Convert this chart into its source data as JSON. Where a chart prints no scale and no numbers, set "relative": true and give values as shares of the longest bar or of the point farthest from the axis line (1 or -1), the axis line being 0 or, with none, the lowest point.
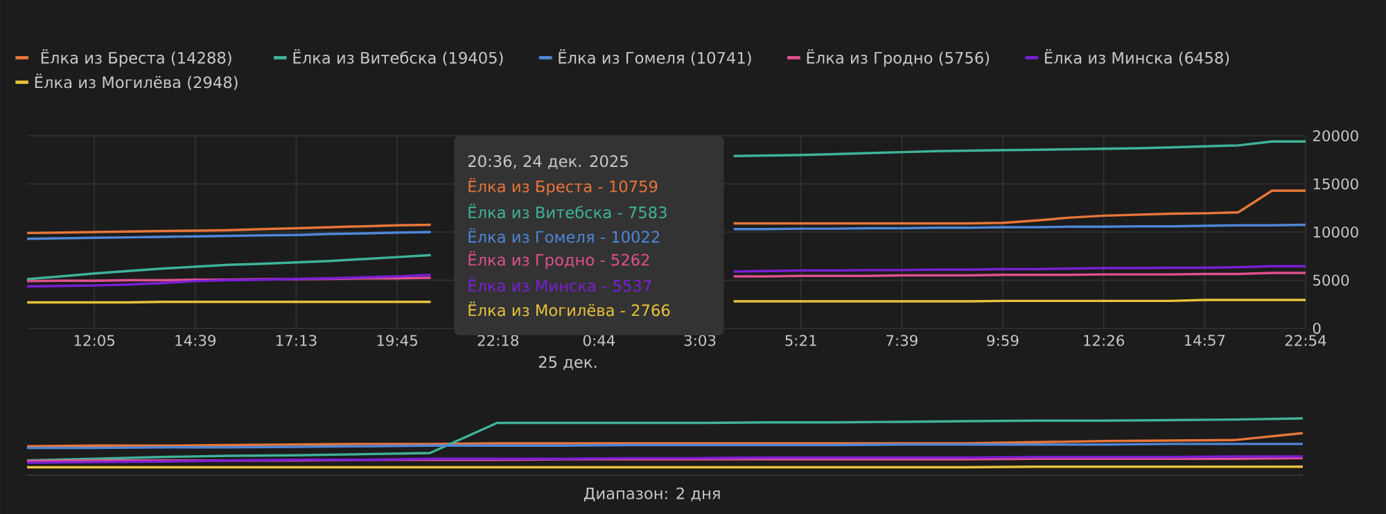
{
  "chart_data": [
    {
      "type": "line",
      "categories": [
        null,
        null,
        "12:05",
        null,
        null,
        "14:39",
        null,
        null,
        "17:13",
        null,
        null,
        "19:45",
        null,
        null,
        "22:18",
        null,
        null,
        "0:44",
        null,
        null,
        "3:03",
        null,
        null,
        "5:21",
        null,
        null,
        "7:39",
        null,
        null,
        "9:59",
        null,
        null,
        "12:26",
        null,
        null,
        "14:57",
        null,
        null,
        "22:54"
      ],
      "series": [
        {
          "name": "Ёлка из Бреста (14288)",
          "color": "#e8763a",
          "values": [
            9900,
            9950,
            10000,
            10050,
            10100,
            10150,
            10200,
            10300,
            10400,
            10500,
            10600,
            10700,
            10750,
            null,
            null,
            null,
            null,
            null,
            null,
            null,
            null,
            10900,
            10900,
            10900,
            10900,
            10900,
            10900,
            10900,
            10900,
            10950,
            11200,
            11500,
            11700,
            11800,
            11900,
            11950,
            12050,
            14300,
            14300
          ]
        },
        {
          "name": "Ёлка из Витебска (19405)",
          "color": "#3fb39a",
          "values": [
            5100,
            5400,
            5700,
            5950,
            6200,
            6400,
            6600,
            6700,
            6850,
            7000,
            7200,
            7400,
            7600,
            null,
            null,
            null,
            null,
            null,
            null,
            null,
            null,
            17900,
            17950,
            18000,
            18100,
            18200,
            18300,
            18400,
            18450,
            18500,
            18550,
            18600,
            18650,
            18700,
            18800,
            18900,
            19000,
            19400,
            19400
          ]
        },
        {
          "name": "Ёлка из Гомеля (10741)",
          "color": "#4f86d8",
          "values": [
            9300,
            9350,
            9400,
            9450,
            9500,
            9550,
            9600,
            9650,
            9700,
            9800,
            9850,
            9950,
            10000,
            null,
            null,
            null,
            null,
            null,
            null,
            null,
            null,
            10300,
            10300,
            10350,
            10350,
            10400,
            10400,
            10450,
            10450,
            10500,
            10500,
            10550,
            10550,
            10600,
            10600,
            10650,
            10700,
            10700,
            10750
          ]
        },
        {
          "name": "Ёлка из Гродно (5756)",
          "color": "#e0508f",
          "values": [
            4900,
            4950,
            4950,
            5000,
            5000,
            5050,
            5050,
            5100,
            5100,
            5150,
            5200,
            5200,
            5250,
            null,
            null,
            null,
            null,
            null,
            null,
            null,
            null,
            5400,
            5400,
            5450,
            5450,
            5450,
            5500,
            5500,
            5500,
            5550,
            5550,
            5550,
            5600,
            5600,
            5600,
            5650,
            5650,
            5750,
            5750
          ]
        },
        {
          "name": "Ёлка из Минска (6458)",
          "color": "#7a1fd6",
          "values": [
            4350,
            4400,
            4450,
            4550,
            4700,
            4900,
            5000,
            5050,
            5150,
            5200,
            5300,
            5400,
            5550,
            null,
            null,
            null,
            null,
            null,
            null,
            null,
            null,
            5900,
            5950,
            6000,
            6000,
            6050,
            6050,
            6100,
            6100,
            6150,
            6150,
            6200,
            6250,
            6250,
            6300,
            6300,
            6350,
            6450,
            6450
          ]
        },
        {
          "name": "Ёлка из Могилёва (2948)",
          "color": "#e8c23a",
          "values": [
            2700,
            2700,
            2700,
            2700,
            2750,
            2750,
            2750,
            2750,
            2750,
            2750,
            2750,
            2750,
            2750,
            null,
            null,
            null,
            null,
            null,
            null,
            null,
            null,
            2800,
            2800,
            2800,
            2800,
            2800,
            2800,
            2800,
            2800,
            2850,
            2850,
            2850,
            2850,
            2850,
            2850,
            2950,
            2950,
            2950,
            2950
          ]
        }
      ],
      "ylim": [
        0,
        20000
      ],
      "yticks": [
        0,
        5000,
        10000,
        15000,
        20000
      ],
      "grid": true,
      "legend": "top",
      "annotations": [
        "20:36, 24 дек. 2025",
        "Ёлка из Бреста - 10759",
        "Ёлка из Витебска - 7583",
        "Ёлка из Гомеля - 10022",
        "Ёлка из Гродно - 5262",
        "Ёлка из Минска - 5537",
        "Ёлка из Могилёва - 2766",
        "25 дек."
      ]
    },
    {
      "type": "line",
      "relative": true,
      "categories": [
        null,
        null,
        null,
        null,
        null,
        null,
        null,
        null,
        null,
        null,
        null,
        null,
        null,
        null,
        null,
        null,
        null,
        null,
        null,
        null
      ],
      "series": [
        {
          "color": "#e8763a",
          "values": [
            0.51,
            0.52,
            0.52,
            0.53,
            0.54,
            0.55,
            0.55,
            0.56,
            0.56,
            0.56,
            0.56,
            0.56,
            0.56,
            0.56,
            0.56,
            0.58,
            0.6,
            0.61,
            0.62,
            0.74
          ]
        },
        {
          "color": "#3fb39a",
          "values": [
            0.26,
            0.29,
            0.32,
            0.34,
            0.35,
            0.37,
            0.39,
            0.92,
            0.92,
            0.92,
            0.92,
            0.93,
            0.93,
            0.94,
            0.95,
            0.96,
            0.96,
            0.97,
            0.98,
            1
          ]
        },
        {
          "color": "#4f86d8",
          "values": [
            0.48,
            0.48,
            0.49,
            0.49,
            0.5,
            0.51,
            0.52,
            0.52,
            0.52,
            0.53,
            0.53,
            0.53,
            0.53,
            0.54,
            0.54,
            0.54,
            0.54,
            0.55,
            0.55,
            0.55
          ]
        },
        {
          "color": "#e0508f",
          "values": [
            0.25,
            0.26,
            0.26,
            0.26,
            0.26,
            0.27,
            0.27,
            0.27,
            0.28,
            0.28,
            0.28,
            0.28,
            0.28,
            0.28,
            0.28,
            0.29,
            0.29,
            0.29,
            0.29,
            0.3
          ]
        },
        {
          "color": "#7a1fd6",
          "values": [
            0.22,
            0.23,
            0.24,
            0.26,
            0.27,
            0.27,
            0.29,
            0.29,
            0.29,
            0.3,
            0.3,
            0.31,
            0.31,
            0.31,
            0.31,
            0.32,
            0.32,
            0.32,
            0.33,
            0.33
          ]
        },
        {
          "color": "#e8c23a",
          "values": [
            0.14,
            0.14,
            0.14,
            0.14,
            0.14,
            0.14,
            0.14,
            0.14,
            0.14,
            0.14,
            0.14,
            0.14,
            0.14,
            0.14,
            0.14,
            0.15,
            0.15,
            0.15,
            0.15,
            0.15
          ]
        }
      ],
      "annotations": [
        "Диапазон: 2 дня"
      ]
    }
  ]
}
